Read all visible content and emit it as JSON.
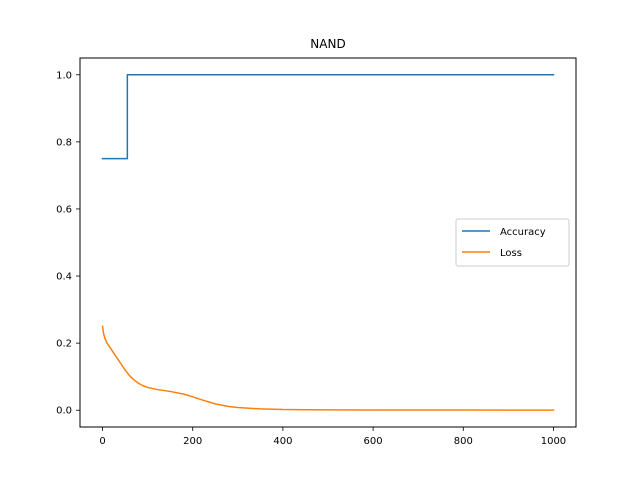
{
  "chart_data": {
    "type": "line",
    "title": "NAND",
    "xlabel": "",
    "ylabel": "",
    "xlim": [
      -50,
      1050
    ],
    "ylim": [
      -0.05,
      1.05
    ],
    "xticks": [
      0,
      200,
      400,
      600,
      800,
      1000
    ],
    "yticks": [
      0.0,
      0.2,
      0.4,
      0.6,
      0.8,
      1.0
    ],
    "xtick_labels": [
      "0",
      "200",
      "400",
      "600",
      "800",
      "1000"
    ],
    "ytick_labels": [
      "0.0",
      "0.2",
      "0.4",
      "0.6",
      "0.8",
      "1.0"
    ],
    "grid": false,
    "legend_position": "center-right",
    "series": [
      {
        "name": "Accuracy",
        "color": "#1f77b4",
        "x": [
          0,
          55,
          55,
          1000
        ],
        "y": [
          0.75,
          0.75,
          1.0,
          1.0
        ]
      },
      {
        "name": "Loss",
        "color": "#ff7f0e",
        "x": [
          0,
          2,
          5,
          10,
          20,
          30,
          40,
          50,
          60,
          70,
          80,
          90,
          100,
          120,
          150,
          180,
          200,
          220,
          250,
          280,
          300,
          350,
          400,
          450,
          500,
          600,
          700,
          800,
          900,
          1000
        ],
        "y": [
          0.25,
          0.23,
          0.215,
          0.2,
          0.18,
          0.16,
          0.14,
          0.12,
          0.103,
          0.09,
          0.08,
          0.073,
          0.068,
          0.062,
          0.056,
          0.048,
          0.04,
          0.031,
          0.019,
          0.011,
          0.008,
          0.004,
          0.002,
          0.0015,
          0.001,
          0.0008,
          0.0006,
          0.0005,
          0.0004,
          0.0003
        ]
      }
    ]
  }
}
